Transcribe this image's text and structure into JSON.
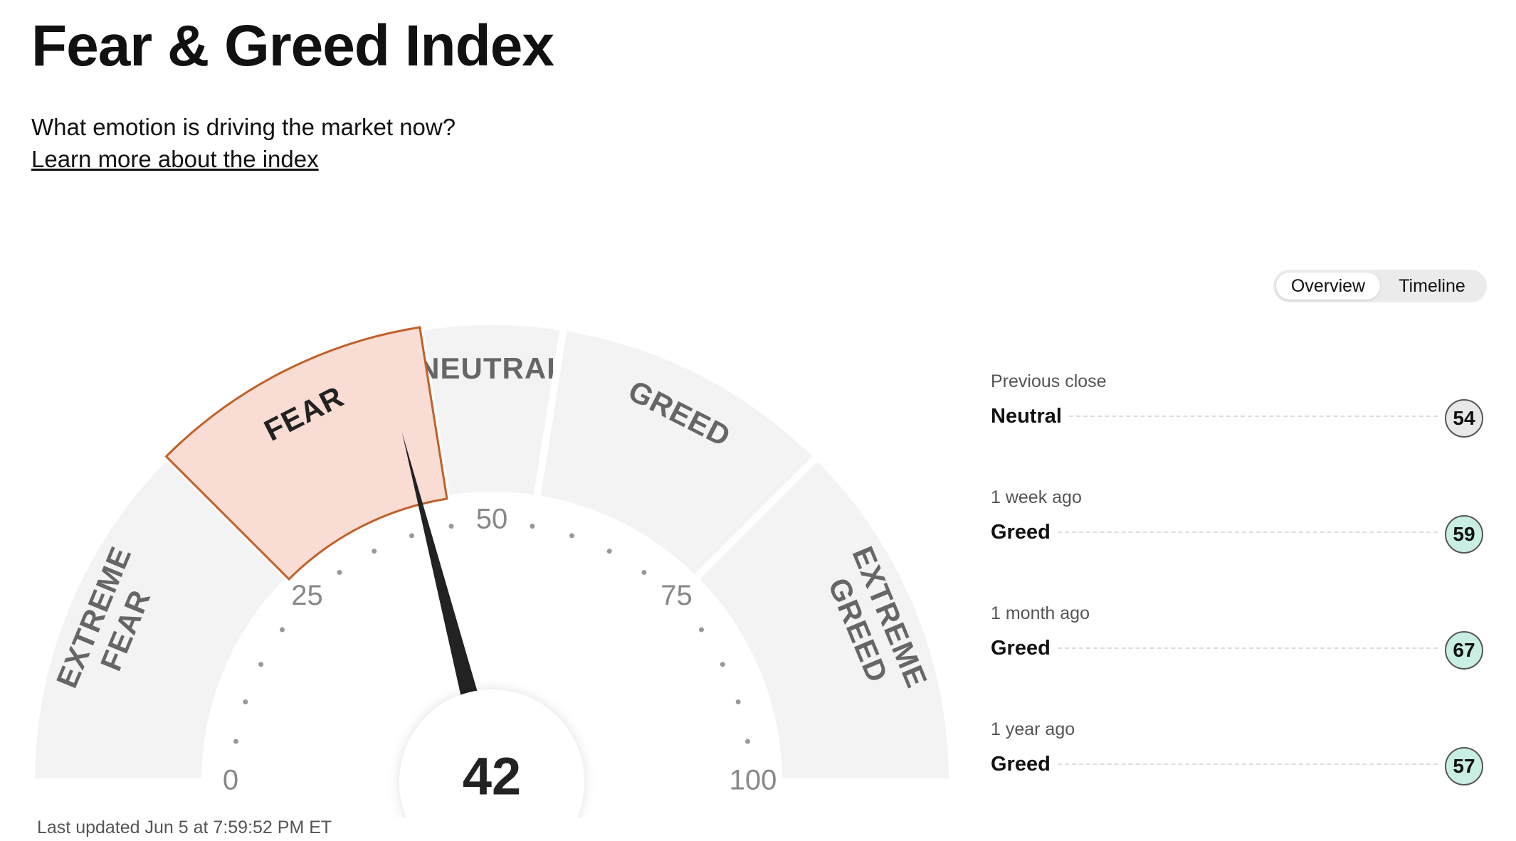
{
  "header": {
    "title": "Fear & Greed Index",
    "subtitle": "What emotion is driving the market now?",
    "link": "Learn more about the index"
  },
  "toggle": [
    "Overview",
    "Timeline"
  ],
  "gauge": {
    "value": 42,
    "min": 0,
    "max": 100,
    "ticks": [
      0,
      25,
      50,
      75,
      100
    ],
    "minor_ticks": [
      5,
      10,
      15,
      20,
      30,
      35,
      40,
      45,
      55,
      60,
      65,
      70,
      80,
      85,
      90,
      95
    ],
    "bands": [
      {
        "label": [
          "EXTREME",
          "FEAR"
        ],
        "from": 0,
        "to": 25
      },
      {
        "label": [
          "FEAR"
        ],
        "from": 25,
        "to": 45
      },
      {
        "label": [
          "NEUTRAL"
        ],
        "from": 45,
        "to": 55
      },
      {
        "label": [
          "GREED"
        ],
        "from": 55,
        "to": 75
      },
      {
        "label": [
          "EXTREME",
          "GREED"
        ],
        "from": 75,
        "to": 100
      }
    ],
    "band_color": "#f3f3f3",
    "active_color": "#f9dcd3",
    "active_stroke": "#c0612a"
  },
  "history": [
    {
      "label": "Previous close",
      "rating": "Neutral",
      "value": 54,
      "color": "#e8e8e8"
    },
    {
      "label": "1 week ago",
      "rating": "Greed",
      "value": 59,
      "color": "#c9eee3"
    },
    {
      "label": "1 month ago",
      "rating": "Greed",
      "value": 67,
      "color": "#c9eee3"
    },
    {
      "label": "1 year ago",
      "rating": "Greed",
      "value": 57,
      "color": "#c9eee3"
    }
  ],
  "footer": "Last updated Jun 5 at 7:59:52 PM ET"
}
